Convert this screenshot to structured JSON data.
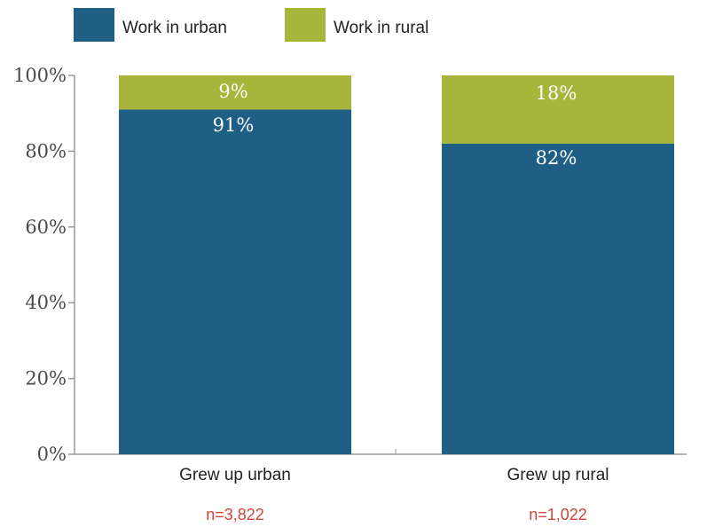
{
  "chart_data": {
    "type": "bar",
    "stacked": true,
    "categories": [
      "Grew up urban",
      "Grew up rural"
    ],
    "series": [
      {
        "name": "Work in urban",
        "values": [
          91,
          82
        ],
        "labels": [
          "91%",
          "82%"
        ],
        "color": "#1f5f86"
      },
      {
        "name": "Work in rural",
        "values": [
          9,
          18
        ],
        "labels": [
          "9%",
          "18%"
        ],
        "color": "#a9b43a"
      }
    ],
    "sample_sizes": [
      "n=3,822",
      "n=1,022"
    ],
    "sample_color": "#d2453b",
    "ylim": [
      0,
      100
    ],
    "yticks": [
      0,
      20,
      40,
      60,
      80,
      100
    ],
    "ytick_labels": [
      "0%",
      "20%",
      "40%",
      "60%",
      "80%",
      "100%"
    ],
    "legend": "top-left",
    "grid": false
  }
}
